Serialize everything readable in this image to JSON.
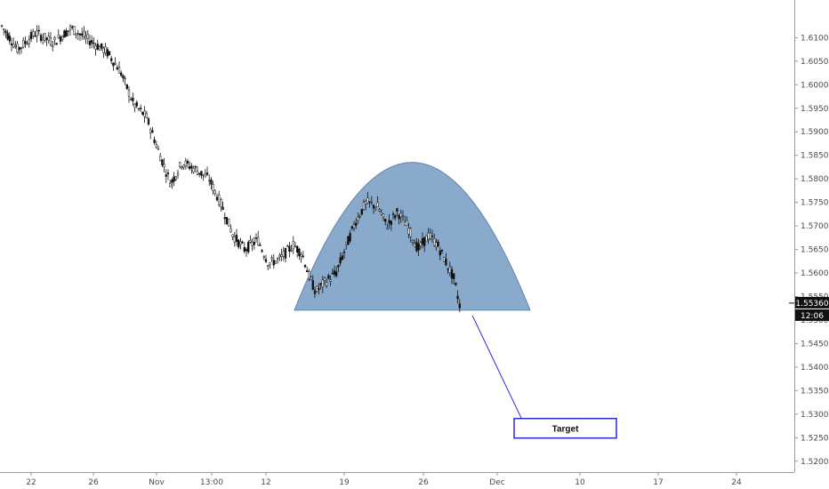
{
  "chart_data": {
    "type": "candlestick",
    "x_ticks": [
      "22",
      "26",
      "Nov",
      "13:00",
      "12",
      "19",
      "26",
      "Dec",
      "10",
      "17",
      "24"
    ],
    "y_ticks": [
      "1.61000",
      "1.60500",
      "1.60000",
      "1.59500",
      "1.59000",
      "1.58500",
      "1.58000",
      "1.57500",
      "1.57000",
      "1.56500",
      "1.56000",
      "1.55500",
      "1.55000",
      "1.54500",
      "1.54000",
      "1.53500",
      "1.53000",
      "1.52500",
      "1.52000"
    ],
    "ylim": [
      1.5192,
      1.6146
    ],
    "last_price": "1.55360",
    "last_price_value": 1.5536,
    "countdown": "12:06",
    "pattern_label": "Target",
    "target_value": 1.527,
    "dome_base_value": 1.5521,
    "dome_peak_value": 1.5835,
    "colors": {
      "dome_fill": "#7fa3c6",
      "dome_edge": "#5f86b0",
      "arrow": "#2a2ad8",
      "candle": "#111111",
      "badge_bg": "#111111",
      "badge_text": "#ffffff",
      "axis": "#9a9a9a"
    }
  }
}
